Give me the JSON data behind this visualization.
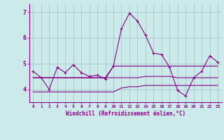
{
  "xlabel": "Windchill (Refroidissement éolien,°C)",
  "background_color": "#cdeaea",
  "grid_color": "#aacccc",
  "line_color": "#880088",
  "xlim": [
    -0.5,
    23.5
  ],
  "ylim": [
    3.5,
    7.3
  ],
  "yticks": [
    4,
    5,
    6,
    7
  ],
  "xticks": [
    0,
    1,
    2,
    3,
    4,
    5,
    6,
    7,
    8,
    9,
    10,
    11,
    12,
    13,
    14,
    15,
    16,
    17,
    18,
    19,
    20,
    21,
    22,
    23
  ],
  "series_main": [
    4.7,
    4.45,
    4.0,
    4.85,
    4.65,
    4.95,
    4.65,
    4.5,
    4.55,
    4.4,
    4.9,
    6.35,
    6.95,
    6.65,
    6.1,
    5.4,
    5.35,
    4.85,
    3.95,
    3.75,
    4.45,
    4.7,
    5.3,
    5.05
  ],
  "series_upper": [
    4.45,
    4.45,
    4.45,
    4.45,
    4.45,
    4.45,
    4.45,
    4.45,
    4.45,
    4.45,
    4.9,
    4.9,
    4.9,
    4.9,
    4.9,
    4.9,
    4.9,
    4.9,
    4.9,
    4.9,
    4.9,
    4.9,
    4.9,
    4.9
  ],
  "series_lower": [
    3.9,
    3.9,
    3.9,
    3.9,
    3.9,
    3.9,
    3.9,
    3.9,
    3.9,
    3.9,
    3.9,
    4.05,
    4.1,
    4.1,
    4.15,
    4.15,
    4.15,
    4.15,
    4.15,
    4.15,
    4.15,
    4.15,
    4.15,
    4.15
  ],
  "series_mid": [
    4.45,
    4.45,
    4.45,
    4.45,
    4.45,
    4.45,
    4.45,
    4.45,
    4.45,
    4.45,
    4.45,
    4.45,
    4.45,
    4.45,
    4.5,
    4.5,
    4.5,
    4.5,
    4.45,
    4.45,
    4.45,
    4.45,
    4.45,
    4.45
  ]
}
